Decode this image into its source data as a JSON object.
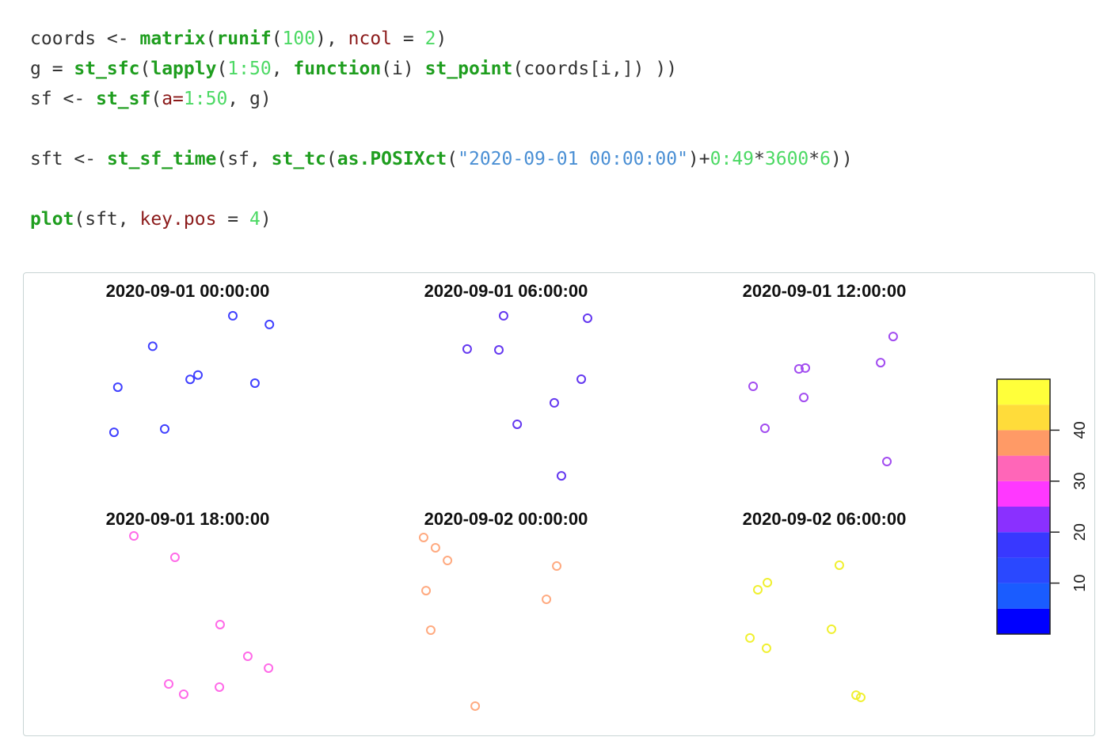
{
  "code": {
    "lines": [
      [
        {
          "text": "coords <- ",
          "style": "plain"
        },
        {
          "text": "matrix",
          "style": "fn"
        },
        {
          "text": "(",
          "style": "plain"
        },
        {
          "text": "runif",
          "style": "fn"
        },
        {
          "text": "(",
          "style": "plain"
        },
        {
          "text": "100",
          "style": "num"
        },
        {
          "text": "), ",
          "style": "plain"
        },
        {
          "text": "ncol",
          "style": "arg"
        },
        {
          "text": " = ",
          "style": "plain"
        },
        {
          "text": "2",
          "style": "num"
        },
        {
          "text": ")",
          "style": "plain"
        }
      ],
      [
        {
          "text": "g = ",
          "style": "plain"
        },
        {
          "text": "st_sfc",
          "style": "fn"
        },
        {
          "text": "(",
          "style": "plain"
        },
        {
          "text": "lapply",
          "style": "fn"
        },
        {
          "text": "(",
          "style": "plain"
        },
        {
          "text": "1:50",
          "style": "num"
        },
        {
          "text": ", ",
          "style": "plain"
        },
        {
          "text": "function",
          "style": "fn"
        },
        {
          "text": "(i) ",
          "style": "plain"
        },
        {
          "text": "st_point",
          "style": "fn"
        },
        {
          "text": "(coords[i,]) ))",
          "style": "plain"
        }
      ],
      [
        {
          "text": "sf <- ",
          "style": "plain"
        },
        {
          "text": "st_sf",
          "style": "fn"
        },
        {
          "text": "(",
          "style": "plain"
        },
        {
          "text": "a=",
          "style": "arg"
        },
        {
          "text": "1:50",
          "style": "num"
        },
        {
          "text": ", g)",
          "style": "plain"
        }
      ],
      [],
      [
        {
          "text": "sft <- ",
          "style": "plain"
        },
        {
          "text": "st_sf_time",
          "style": "fn"
        },
        {
          "text": "(sf, ",
          "style": "plain"
        },
        {
          "text": "st_tc",
          "style": "fn"
        },
        {
          "text": "(",
          "style": "plain"
        },
        {
          "text": "as.POSIXct",
          "style": "fn"
        },
        {
          "text": "(",
          "style": "plain"
        },
        {
          "text": "\"2020-09-01 00:00:00\"",
          "style": "str"
        },
        {
          "text": ")+",
          "style": "plain"
        },
        {
          "text": "0:49",
          "style": "num"
        },
        {
          "text": "*",
          "style": "plain"
        },
        {
          "text": "3600",
          "style": "num"
        },
        {
          "text": "*",
          "style": "plain"
        },
        {
          "text": "6",
          "style": "num"
        },
        {
          "text": "))",
          "style": "plain"
        }
      ],
      [],
      [
        {
          "text": "plot",
          "style": "fn"
        },
        {
          "text": "(sft, ",
          "style": "plain"
        },
        {
          "text": "key.pos",
          "style": "arg"
        },
        {
          "text": " = ",
          "style": "plain"
        },
        {
          "text": "4",
          "style": "num"
        },
        {
          "text": ")",
          "style": "plain"
        }
      ]
    ]
  },
  "plot": {
    "xlim": [
      0,
      1
    ],
    "ylim": [
      0,
      1
    ],
    "panels": [
      {
        "title": "2020-09-01 00:00:00",
        "color": "#4040ff",
        "x": [
          0.75,
          0.96,
          0.29,
          0.09,
          0.505,
          0.55,
          0.877,
          0.068,
          0.359
        ],
        "y": [
          0.955,
          0.905,
          0.78,
          0.545,
          0.59,
          0.615,
          0.568,
          0.286,
          0.305
        ]
      },
      {
        "title": "2020-09-01 06:00:00",
        "color": "#6438f0",
        "x": [
          0.477,
          0.959,
          0.268,
          0.45,
          0.923,
          0.768,
          0.555,
          0.809
        ],
        "y": [
          0.955,
          0.941,
          0.764,
          0.759,
          0.591,
          0.455,
          0.332,
          0.036
        ]
      },
      {
        "title": "2020-09-01 12:00:00",
        "color": "#a24cf0",
        "x": [
          0.886,
          0.814,
          0.345,
          0.382,
          0.082,
          0.373,
          0.15,
          0.85
        ],
        "y": [
          0.836,
          0.686,
          0.65,
          0.655,
          0.55,
          0.486,
          0.309,
          0.118
        ]
      },
      {
        "title": "2020-09-01 18:00:00",
        "color": "#ff6ae8",
        "x": [
          0.182,
          0.418,
          0.677,
          0.836,
          0.955,
          0.382,
          0.468,
          0.673
        ],
        "y": [
          1.0,
          0.877,
          0.491,
          0.309,
          0.241,
          0.15,
          0.091,
          0.132
        ]
      },
      {
        "title": "2020-09-02 00:00:00",
        "color": "#ffaa80",
        "x": [
          0.018,
          0.086,
          0.155,
          0.032,
          0.059,
          0.782,
          0.723,
          0.314
        ],
        "y": [
          0.991,
          0.932,
          0.859,
          0.686,
          0.459,
          0.827,
          0.636,
          0.023
        ]
      },
      {
        "title": "2020-09-02 06:00:00",
        "color": "#f0f030",
        "x": [
          0.577,
          0.164,
          0.109,
          0.064,
          0.159,
          0.532,
          0.673,
          0.7
        ],
        "y": [
          0.832,
          0.732,
          0.691,
          0.414,
          0.355,
          0.464,
          0.086,
          0.073
        ]
      }
    ],
    "colorbar": {
      "lim": [
        0,
        50
      ],
      "breaks": [
        0,
        5,
        10,
        15,
        20,
        25,
        30,
        35,
        40,
        45,
        50
      ],
      "colors": [
        "#0000ff",
        "#1a5cff",
        "#2a48ff",
        "#3838ff",
        "#8a30ff",
        "#ff38ff",
        "#ff66b8",
        "#ff9a66",
        "#ffdc3a",
        "#ffff3a"
      ],
      "ticks": [
        10,
        20,
        30,
        40
      ]
    }
  }
}
